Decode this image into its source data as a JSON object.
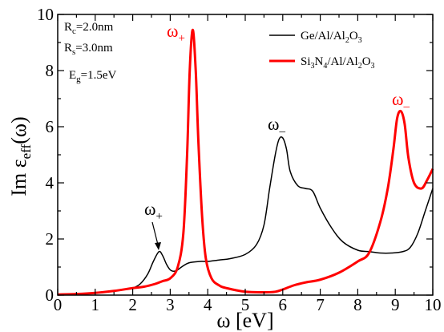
{
  "chart_data": {
    "type": "line",
    "xlabel": "ω [eV]",
    "ylabel": "Im ε_eff(ω)",
    "xlim": [
      0,
      10
    ],
    "ylim": [
      0,
      10
    ],
    "x_ticks": [
      "0",
      "1",
      "2",
      "3",
      "4",
      "5",
      "6",
      "7",
      "8",
      "9",
      "10"
    ],
    "y_ticks": [
      "0",
      "2",
      "4",
      "6",
      "8",
      "10"
    ],
    "legend_position": "top-right",
    "parameters": [
      "R_c=2.0nm",
      "R_s=3.0nm",
      "E_g=1.5eV"
    ],
    "series": [
      {
        "name": "Ge/Al/Al₂O₃",
        "color": "#000000",
        "x": [
          0,
          0.5,
          1.0,
          1.5,
          1.8,
          2.0,
          2.2,
          2.4,
          2.55,
          2.7,
          2.8,
          2.9,
          3.0,
          3.1,
          3.2,
          3.3,
          3.5,
          3.8,
          4.0,
          4.3,
          4.6,
          5.0,
          5.3,
          5.5,
          5.65,
          5.8,
          5.9,
          6.0,
          6.1,
          6.2,
          6.4,
          6.6,
          6.8,
          7.0,
          7.3,
          7.6,
          8.0,
          8.3,
          8.6,
          8.9,
          9.2,
          9.4,
          9.6,
          9.8,
          10.0
        ],
        "y": [
          0.02,
          0.04,
          0.08,
          0.15,
          0.2,
          0.25,
          0.4,
          0.75,
          1.2,
          1.55,
          1.4,
          1.1,
          0.9,
          0.85,
          0.9,
          1.0,
          1.15,
          1.2,
          1.2,
          1.25,
          1.3,
          1.45,
          1.8,
          2.5,
          3.8,
          5.0,
          5.55,
          5.6,
          5.2,
          4.4,
          3.9,
          3.8,
          3.7,
          3.1,
          2.4,
          1.9,
          1.6,
          1.55,
          1.5,
          1.5,
          1.55,
          1.7,
          2.2,
          3.0,
          3.8
        ]
      },
      {
        "name": "Si₃N₄/Al/Al₂O₃",
        "color": "#ff0000",
        "x": [
          0,
          0.5,
          1.0,
          1.5,
          2.0,
          2.3,
          2.6,
          2.8,
          3.0,
          3.2,
          3.35,
          3.45,
          3.52,
          3.6,
          3.68,
          3.75,
          3.85,
          3.95,
          4.1,
          4.3,
          4.5,
          5.0,
          5.5,
          5.8,
          6.0,
          6.3,
          6.6,
          7.0,
          7.5,
          8.0,
          8.3,
          8.6,
          8.8,
          8.95,
          9.05,
          9.15,
          9.25,
          9.35,
          9.5,
          9.7,
          9.85,
          10.0
        ],
        "y": [
          0.02,
          0.04,
          0.08,
          0.15,
          0.25,
          0.3,
          0.4,
          0.5,
          0.6,
          1.0,
          2.2,
          5.0,
          8.0,
          9.45,
          8.0,
          5.5,
          2.8,
          1.3,
          0.6,
          0.35,
          0.25,
          0.12,
          0.1,
          0.12,
          0.2,
          0.35,
          0.45,
          0.55,
          0.8,
          1.2,
          1.5,
          2.6,
          3.8,
          5.2,
          6.3,
          6.55,
          6.1,
          4.9,
          4.0,
          3.8,
          4.1,
          4.5
        ]
      }
    ],
    "annotations": [
      {
        "text": "ω₊",
        "color": "#000000",
        "arrow_to": [
          2.72,
          1.5
        ]
      },
      {
        "text": "ω₊",
        "color": "#ff0000"
      },
      {
        "text": "ω₋",
        "color": "#000000"
      },
      {
        "text": "ω₋",
        "color": "#ff0000"
      }
    ]
  }
}
